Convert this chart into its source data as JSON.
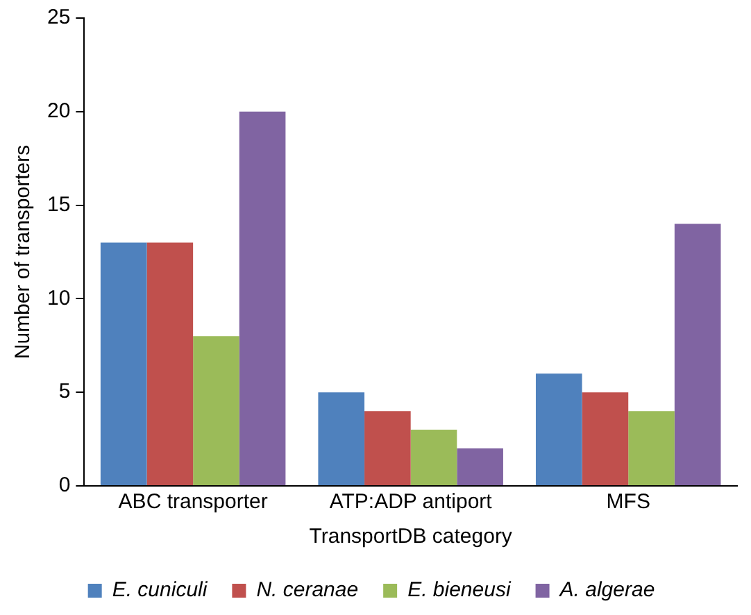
{
  "chart_data": {
    "type": "bar",
    "xlabel": "TransportDB category",
    "ylabel": "Number of transporters",
    "categories": [
      "ABC transporter",
      "ATP:ADP antiport",
      "MFS"
    ],
    "series": [
      {
        "name": "E. cuniculi",
        "color": "#4f81bd",
        "values": [
          13,
          5,
          6
        ]
      },
      {
        "name": "N. ceranae",
        "color": "#c0504d",
        "values": [
          13,
          4,
          5
        ]
      },
      {
        "name": "E. bieneusi",
        "color": "#9bbb59",
        "values": [
          8,
          3,
          4
        ]
      },
      {
        "name": "A. algerae",
        "color": "#8064a2",
        "values": [
          20,
          2,
          14
        ]
      }
    ],
    "ylim": [
      0,
      25
    ],
    "yticks": [
      0,
      5,
      10,
      15,
      20,
      25
    ],
    "grid": false,
    "legend": "bottom"
  }
}
